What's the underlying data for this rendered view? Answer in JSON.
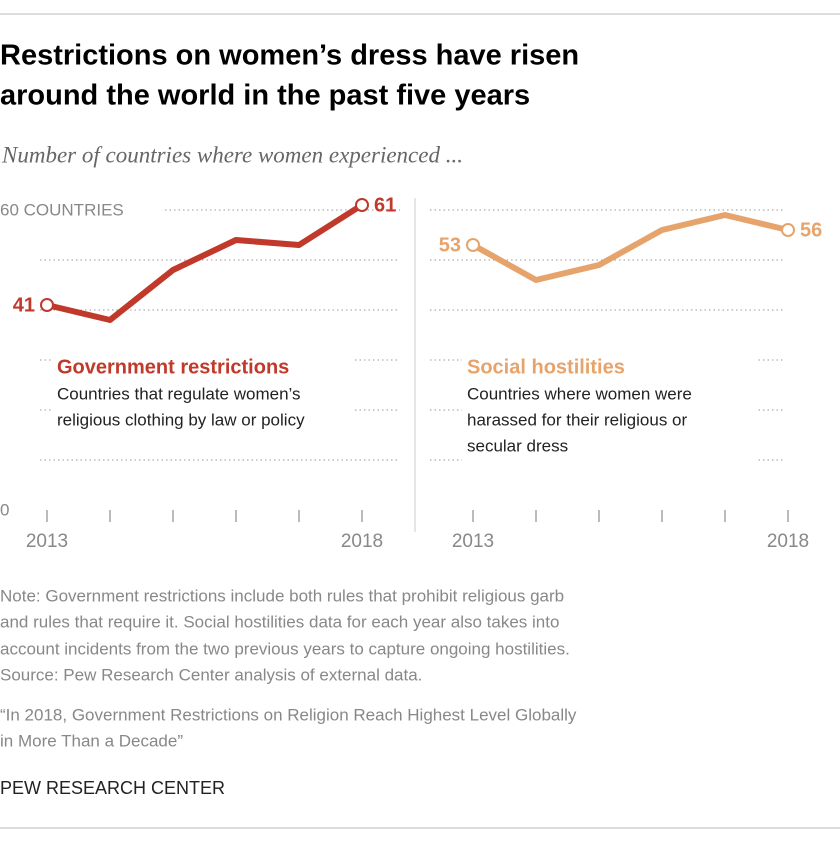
{
  "title": [
    "Restrictions on women’s dress have risen",
    "around the world in the past five years"
  ],
  "subtitle": "Number of countries where women experienced ...",
  "chart_data": [
    {
      "type": "line",
      "categories": [
        "2013",
        null,
        null,
        null,
        null,
        "2018"
      ],
      "series": [
        {
          "name": "Government restrictions",
          "color": "#c0392b",
          "values": [
            41,
            38,
            48,
            54,
            53,
            61
          ],
          "description": [
            "Countries that regulate women’s",
            "religious clothing by law or policy"
          ]
        }
      ],
      "ylim": [
        0,
        60
      ],
      "yticks": [
        0,
        {
          "value": 60,
          "label": "60 COUNTRIES"
        }
      ],
      "grid_lines": [
        10,
        20,
        30,
        40,
        50
      ]
    },
    {
      "type": "line",
      "categories": [
        "2013",
        null,
        null,
        null,
        null,
        "2018"
      ],
      "series": [
        {
          "name": "Social hostilities",
          "color": "#e6a46c",
          "values": [
            53,
            46,
            49,
            56,
            59,
            56
          ],
          "description": [
            "Countries where women were",
            "harassed for their religious or",
            "secular dress"
          ]
        }
      ],
      "ylim": [
        0,
        60
      ],
      "grid_lines": [
        10,
        20,
        30,
        40,
        50,
        60
      ]
    }
  ],
  "note": [
    "Note: Government restrictions include both rules that prohibit religious garb",
    "and rules that require it. Social hostilities data for each year also takes into",
    "account incidents from the two previous years to capture ongoing hostilities.",
    "Source: Pew Research Center analysis of external data.",
    "“In 2018, Government Restrictions on Religion Reach Highest Level Globally",
    "in More Than a Decade”"
  ],
  "credit": "PEW RESEARCH CENTER"
}
